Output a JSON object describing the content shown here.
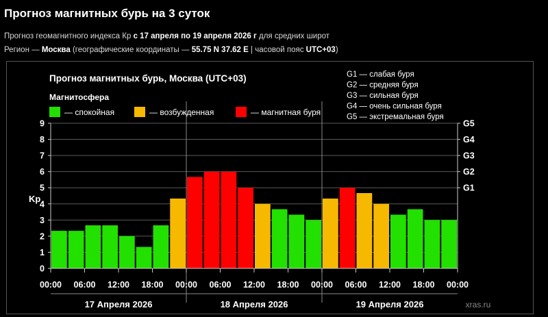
{
  "header": {
    "title": "Прогноз магнитных бурь на 3 суток",
    "line1_prefix": "Прогноз геомагнитного индекса Кр ",
    "line1_period": "с 17 апреля по 19 апреля 2026 г",
    "line1_suffix": " для средних широт",
    "line2_prefix": "Регион — ",
    "line2_region": "Москва",
    "line2_coords_prefix": " (географические координаты — ",
    "line2_coords": "55.75 N 37.62 E",
    "line2_tz_prefix": " | часовой пояс ",
    "line2_tz": "UTC+03",
    "line2_suffix": ")"
  },
  "chart_data": {
    "type": "bar",
    "title": "Прогноз магнитных бурь, Москва (UTC+03)",
    "legend_title": "Магнитосфера",
    "legend": [
      {
        "label": "— спокойная",
        "color": "#22e000"
      },
      {
        "label": "— возбужденная",
        "color": "#f7b800"
      },
      {
        "label": "— магнитная буря",
        "color": "#ff0000"
      }
    ],
    "g_scale": [
      "G1 — слабая буря",
      "G2 — средняя буря",
      "G3 — сильная буря",
      "G4 — очень сильная буря",
      "G5 — экстремальная буря"
    ],
    "ylabel": "Kp",
    "ylim": [
      0,
      9
    ],
    "yticks": [
      "0",
      "1",
      "2",
      "3",
      "4",
      "5",
      "6",
      "7",
      "8",
      "9"
    ],
    "right_ticks": [
      {
        "label": "G1",
        "value": 5
      },
      {
        "label": "G2",
        "value": 6
      },
      {
        "label": "G3",
        "value": 7
      },
      {
        "label": "G4",
        "value": 8
      },
      {
        "label": "G5",
        "value": 9
      }
    ],
    "xticks": [
      "00:00",
      "06:00",
      "12:00",
      "18:00",
      "00:00",
      "06:00",
      "12:00",
      "18:00",
      "00:00",
      "06:00",
      "12:00",
      "18:00",
      "00:00"
    ],
    "days": [
      "17 Апреля 2026",
      "18 Апреля 2026",
      "19 Апреля 2026"
    ],
    "values": [
      2.33,
      2.33,
      2.67,
      2.67,
      2.0,
      1.33,
      2.67,
      4.33,
      5.67,
      6.0,
      6.0,
      5.0,
      4.0,
      3.67,
      3.33,
      3.0,
      4.33,
      5.0,
      4.67,
      4.0,
      3.33,
      3.67,
      3.0,
      3.0
    ],
    "levels": [
      "calm",
      "calm",
      "calm",
      "calm",
      "calm",
      "calm",
      "calm",
      "active",
      "storm",
      "storm",
      "storm",
      "storm",
      "active",
      "calm",
      "calm",
      "calm",
      "active",
      "storm",
      "active",
      "active",
      "calm",
      "calm",
      "calm",
      "calm"
    ],
    "level_colors": {
      "calm": "#22e000",
      "active": "#f7b800",
      "storm": "#ff0000"
    },
    "grid": true,
    "source": "xras.ru"
  }
}
